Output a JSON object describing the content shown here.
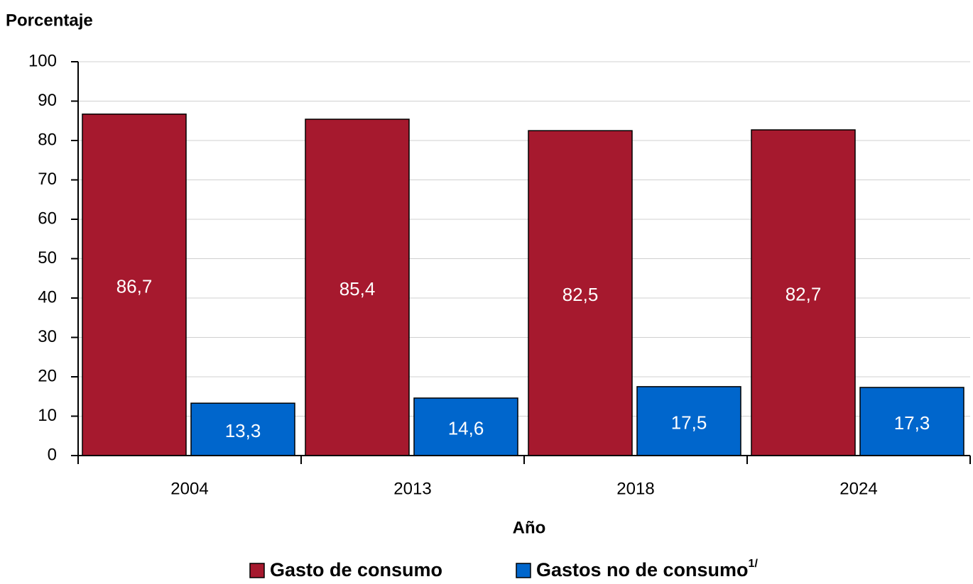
{
  "chart_data": {
    "type": "bar",
    "y_axis_label": "Porcentaje",
    "x_axis_label": "Año",
    "categories": [
      "2004",
      "2013",
      "2018",
      "2024"
    ],
    "series": [
      {
        "name": "Gasto de consumo",
        "color": "#a6192e",
        "values": [
          86.7,
          85.4,
          82.5,
          82.7
        ],
        "value_labels": [
          "86,7",
          "85,4",
          "82,5",
          "82,7"
        ]
      },
      {
        "name": "Gastos no de consumo",
        "footnote_mark": "1/",
        "color": "#0066cc",
        "values": [
          13.3,
          14.6,
          17.5,
          17.3
        ],
        "value_labels": [
          "13,3",
          "14,6",
          "17,5",
          "17,3"
        ]
      }
    ],
    "ylim": [
      0,
      100
    ],
    "yticks": [
      0,
      10,
      20,
      30,
      40,
      50,
      60,
      70,
      80,
      90,
      100
    ],
    "grid": true,
    "legend": "bottom"
  }
}
